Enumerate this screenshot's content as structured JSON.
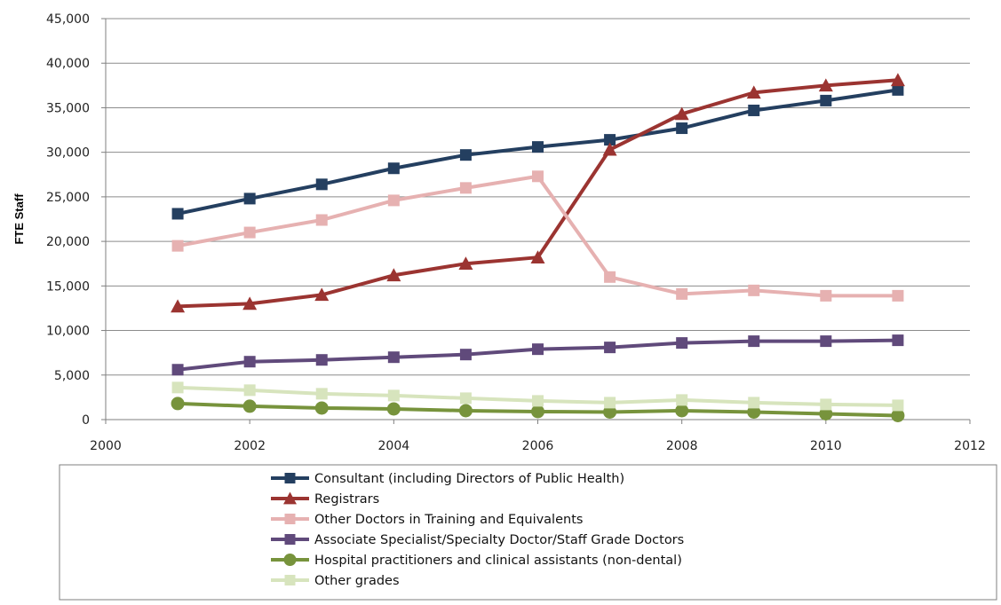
{
  "chart_data": {
    "type": "line",
    "title": "",
    "xlabel": "",
    "ylabel": "FTE Staff",
    "xlim": [
      2000,
      2012
    ],
    "ylim": [
      0,
      45000
    ],
    "x_ticks": [
      2000,
      2002,
      2004,
      2006,
      2008,
      2010,
      2012
    ],
    "x_tick_labels": [
      "2000",
      "2002",
      "2004",
      "2006",
      "2008",
      "2010",
      "2012"
    ],
    "y_ticks": [
      0,
      5000,
      10000,
      15000,
      20000,
      25000,
      30000,
      35000,
      40000,
      45000
    ],
    "y_tick_labels": [
      "0",
      "5,000",
      "10,000",
      "15,000",
      "20,000",
      "25,000",
      "30,000",
      "35,000",
      "40,000",
      "45,000"
    ],
    "grid": "horizontal",
    "legend_position": "bottom",
    "x": [
      2001,
      2002,
      2003,
      2004,
      2005,
      2006,
      2007,
      2008,
      2009,
      2010,
      2011
    ],
    "series": [
      {
        "name": "Consultant (including Directors of Public Health)",
        "color": "#243f60",
        "marker": "square",
        "values": [
          23100,
          24800,
          26400,
          28200,
          29700,
          30600,
          31400,
          32700,
          34700,
          35800,
          37000
        ]
      },
      {
        "name": "Registrars",
        "color": "#9b3431",
        "marker": "triangle",
        "values": [
          12700,
          13000,
          14000,
          16200,
          17500,
          18200,
          30300,
          34300,
          36700,
          37500,
          38100
        ]
      },
      {
        "name": "Other Doctors in Training and Equivalents",
        "color": "#e6b1b1",
        "marker": "square",
        "values": [
          19500,
          21000,
          22400,
          24600,
          26000,
          27300,
          16000,
          14100,
          14500,
          13900,
          13900
        ]
      },
      {
        "name": "Associate Specialist/Specialty  Doctor/Staff Grade Doctors",
        "color": "#604a7b",
        "marker": "square",
        "values": [
          5600,
          6500,
          6700,
          7000,
          7300,
          7900,
          8100,
          8600,
          8800,
          8800,
          8900
        ]
      },
      {
        "name": "Hospital practitioners and clinical assistants  (non-dental)",
        "color": "#77933c",
        "marker": "circle",
        "values": [
          1800,
          1500,
          1300,
          1200,
          1000,
          900,
          850,
          1000,
          850,
          650,
          450
        ]
      },
      {
        "name": "Other grades",
        "color": "#d7e4bd",
        "marker": "square",
        "values": [
          3600,
          3300,
          2900,
          2700,
          2400,
          2100,
          1900,
          2200,
          1900,
          1700,
          1600
        ]
      }
    ]
  }
}
